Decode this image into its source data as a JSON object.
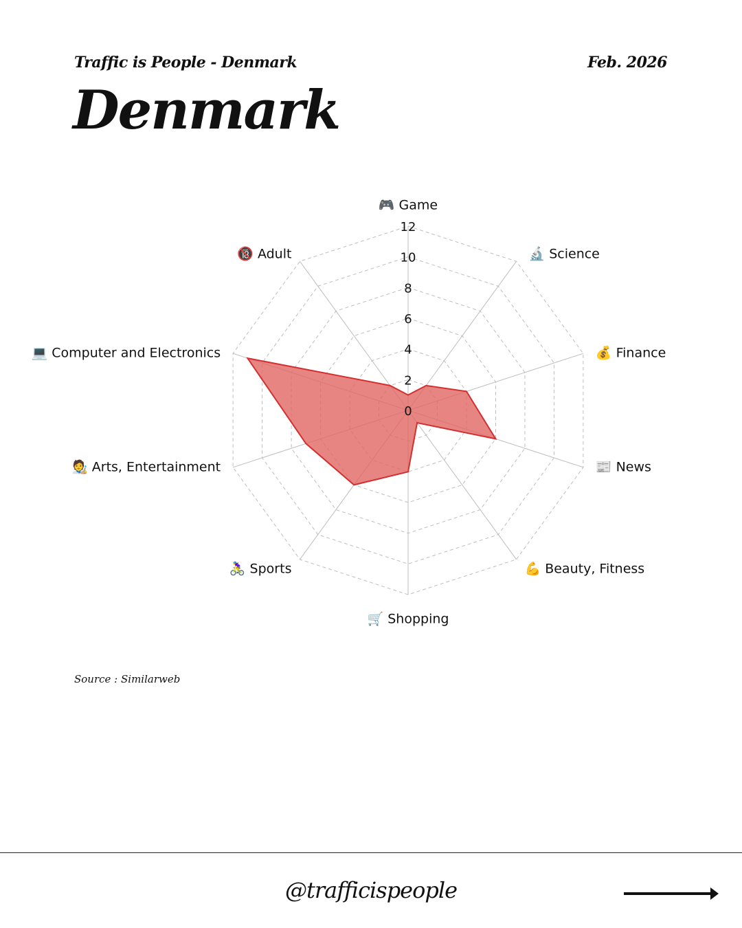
{
  "header": {
    "subtitle": "Traffic is People - Denmark",
    "date": "Feb. 2026",
    "title": "Denmark"
  },
  "source": "Source : Similarweb",
  "footer": {
    "handle": "@trafficispeople",
    "arrow_icon": "right-arrow-icon"
  },
  "colors": {
    "fill": "#E06661",
    "fill_opacity": 0.8,
    "stroke": "#D32F2F",
    "grid": "#BDBDBD",
    "spoke": "#BDBDBD"
  },
  "chart_data": {
    "type": "radar",
    "title": "Denmark",
    "categories": [
      "🎮 Game",
      "🔬 Science",
      "💰 Finance",
      "📰 News",
      "💪 Beauty, Fitness",
      "🛒 Shopping",
      "🚴‍♀️ Sports",
      "🧑‍🎨 Arts, Entertainment",
      "💻 Computer and Electronics",
      "🔞 Adult"
    ],
    "series": [
      {
        "name": "Denmark",
        "values": [
          1,
          2,
          4,
          6,
          1,
          4,
          6,
          7,
          11,
          2
        ]
      }
    ],
    "radial_ticks": [
      0,
      2,
      4,
      6,
      8,
      10,
      12
    ],
    "rlim": [
      0,
      12
    ],
    "grid": true,
    "legend": false
  }
}
